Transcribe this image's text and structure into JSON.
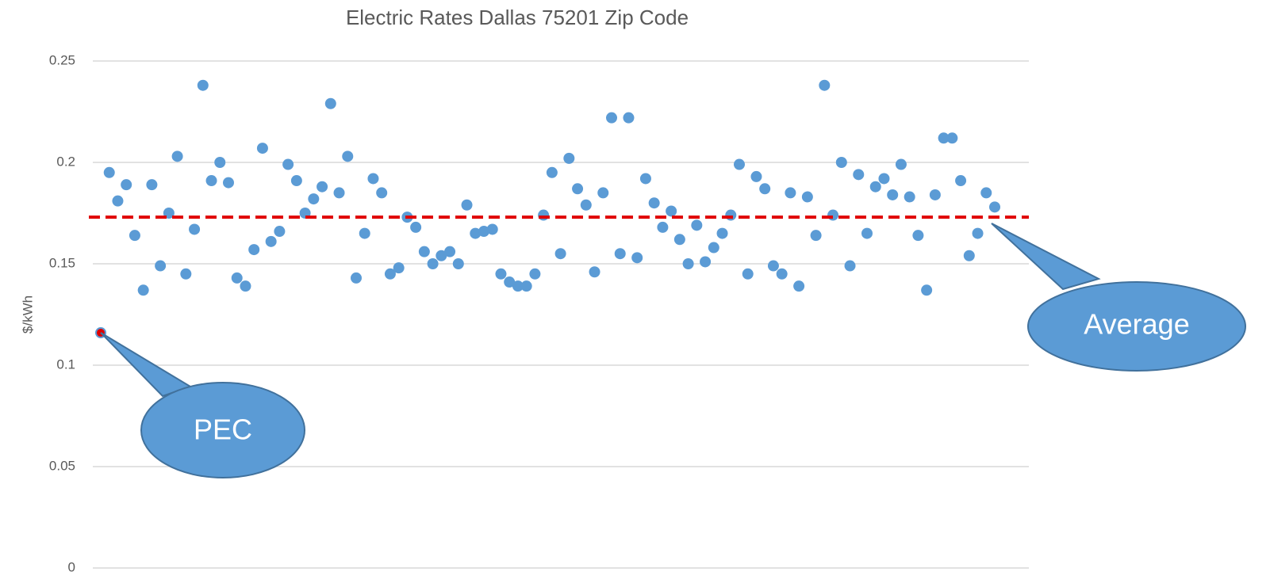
{
  "chart_data": {
    "type": "scatter",
    "title": "Electric Rates Dallas 75201 Zip Code",
    "y_label": "$/kWh",
    "values": [
      0.116,
      0.195,
      0.181,
      0.189,
      0.164,
      0.137,
      0.189,
      0.149,
      0.175,
      0.203,
      0.145,
      0.167,
      0.238,
      0.191,
      0.2,
      0.19,
      0.143,
      0.139,
      0.157,
      0.207,
      0.161,
      0.166,
      0.199,
      0.191,
      0.175,
      0.182,
      0.188,
      0.229,
      0.185,
      0.203,
      0.143,
      0.165,
      0.192,
      0.185,
      0.145,
      0.148,
      0.173,
      0.168,
      0.156,
      0.15,
      0.154,
      0.156,
      0.15,
      0.179,
      0.165,
      0.166,
      0.167,
      0.145,
      0.141,
      0.139,
      0.139,
      0.145,
      0.174,
      0.195,
      0.155,
      0.202,
      0.187,
      0.179,
      0.146,
      0.185,
      0.222,
      0.155,
      0.222,
      0.153,
      0.192,
      0.18,
      0.168,
      0.176,
      0.162,
      0.15,
      0.169,
      0.151,
      0.158,
      0.165,
      0.174,
      0.199,
      0.145,
      0.193,
      0.187,
      0.149,
      0.145,
      0.185,
      0.139,
      0.183,
      0.164,
      0.238,
      0.174,
      0.2,
      0.149,
      0.194,
      0.165,
      0.188,
      0.192,
      0.184,
      0.199,
      0.183,
      0.164,
      0.137,
      0.184,
      0.212,
      0.212,
      0.191,
      0.154,
      0.165,
      0.185,
      0.178
    ],
    "color": "#5b9bd5",
    "highlight_index": 0,
    "highlight_color": "#e00000",
    "average_line": {
      "value": 0.173,
      "color": "#e00000"
    },
    "annotations": [
      "PEC",
      "Average"
    ],
    "ylim": [
      0,
      0.25
    ],
    "yticks": [
      0,
      0.05,
      0.1,
      0.15,
      0.2,
      0.25
    ],
    "grid": true
  }
}
